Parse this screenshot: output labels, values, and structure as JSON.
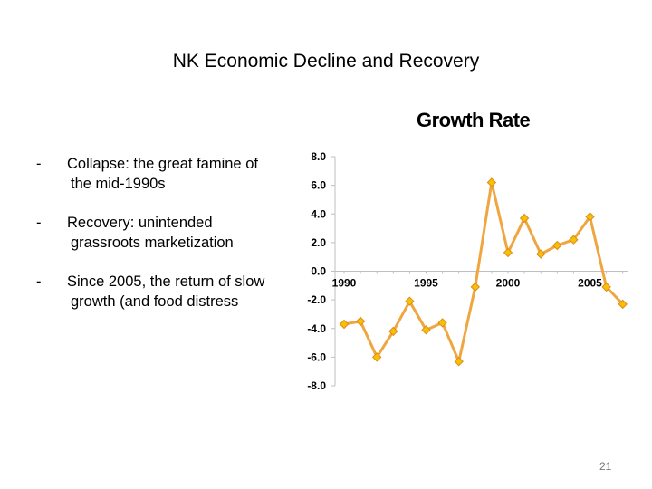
{
  "slide": {
    "title": "NK Economic Decline and Recovery",
    "bullets": [
      {
        "dash": "-",
        "line1": "Collapse: the great famine of",
        "line2": "the mid-1990s"
      },
      {
        "dash": "-",
        "line1": "Recovery: unintended",
        "line2": "grassroots marketization"
      },
      {
        "dash": "-",
        "line1": "Since 2005, the return of slow",
        "line2": "growth (and food distress"
      }
    ],
    "page_number": "21"
  },
  "chart_data": {
    "type": "line",
    "title": "Growth Rate",
    "xlabel": "",
    "ylabel": "",
    "x": [
      1990,
      1991,
      1992,
      1993,
      1994,
      1995,
      1996,
      1997,
      1998,
      1999,
      2000,
      2001,
      2002,
      2003,
      2004,
      2005,
      2006,
      2007
    ],
    "series": [
      {
        "values": [
          -3.7,
          -3.5,
          -6.0,
          -4.2,
          -2.1,
          -4.1,
          -3.6,
          -6.3,
          -1.1,
          6.2,
          1.3,
          3.7,
          1.2,
          1.8,
          2.2,
          3.8,
          -1.1,
          -2.3
        ]
      }
    ],
    "ylim": [
      -8,
      8
    ],
    "y_ticks": [
      "8.0",
      "6.0",
      "4.0",
      "2.0",
      "0.0",
      "-2.0",
      "-4.0",
      "-6.0",
      "-8.0"
    ],
    "y_tick_values": [
      8,
      6,
      4,
      2,
      0,
      -2,
      -4,
      -6,
      -8
    ],
    "x_tick_labels": [
      "1990",
      "1995",
      "2000",
      "2005"
    ],
    "x_tick_values": [
      1990,
      1995,
      2000,
      2005
    ],
    "grid": false,
    "line_color": "#f0a640",
    "marker_fill": "#f5c100",
    "marker_stroke": "#e08a1e"
  }
}
